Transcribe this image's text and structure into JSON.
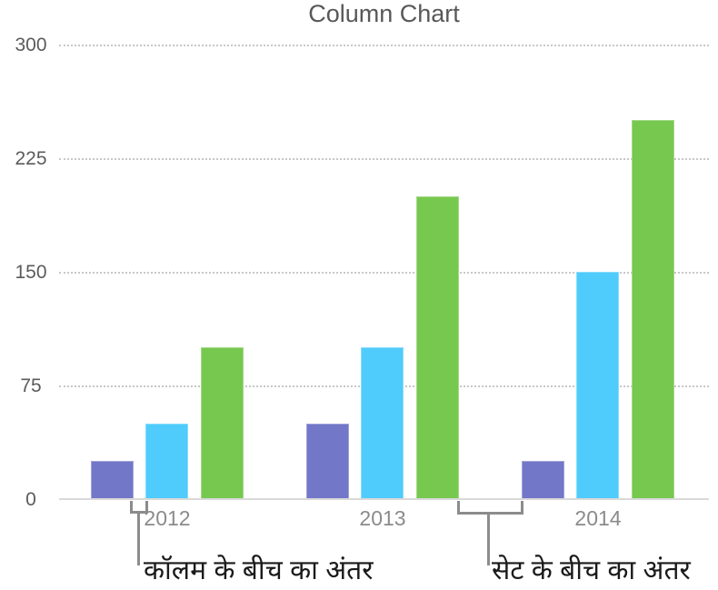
{
  "chart_data": {
    "type": "bar",
    "title": "Column Chart",
    "categories": [
      "2012",
      "2013",
      "2014"
    ],
    "series": [
      {
        "name": "purple-series",
        "color": "#7277c8",
        "values": [
          25,
          50,
          25
        ]
      },
      {
        "name": "blue-series",
        "color": "#4fccfb",
        "values": [
          50,
          100,
          150
        ]
      },
      {
        "name": "green-series",
        "color": "#77c84e",
        "values": [
          100,
          200,
          250
        ]
      }
    ],
    "ylim": [
      0,
      300
    ],
    "yticks": [
      0,
      75,
      150,
      225,
      300
    ],
    "xlabel": "",
    "ylabel": "",
    "grid": "horizontal-dotted",
    "legend_position": "none"
  },
  "annotations": {
    "column_gap_label": "कॉलम के बीच का अंतर",
    "set_gap_label": "सेट के बीच का अंतर"
  },
  "colors": {
    "axis_line": "#d9d9da",
    "gridline": "#c7c7c9",
    "title_text": "#58585a",
    "tick_text": "#5b5b5d",
    "category_text": "#8b8b8d",
    "callout_line": "#8c8c8e",
    "annotation_text": "#1a1a1a"
  }
}
